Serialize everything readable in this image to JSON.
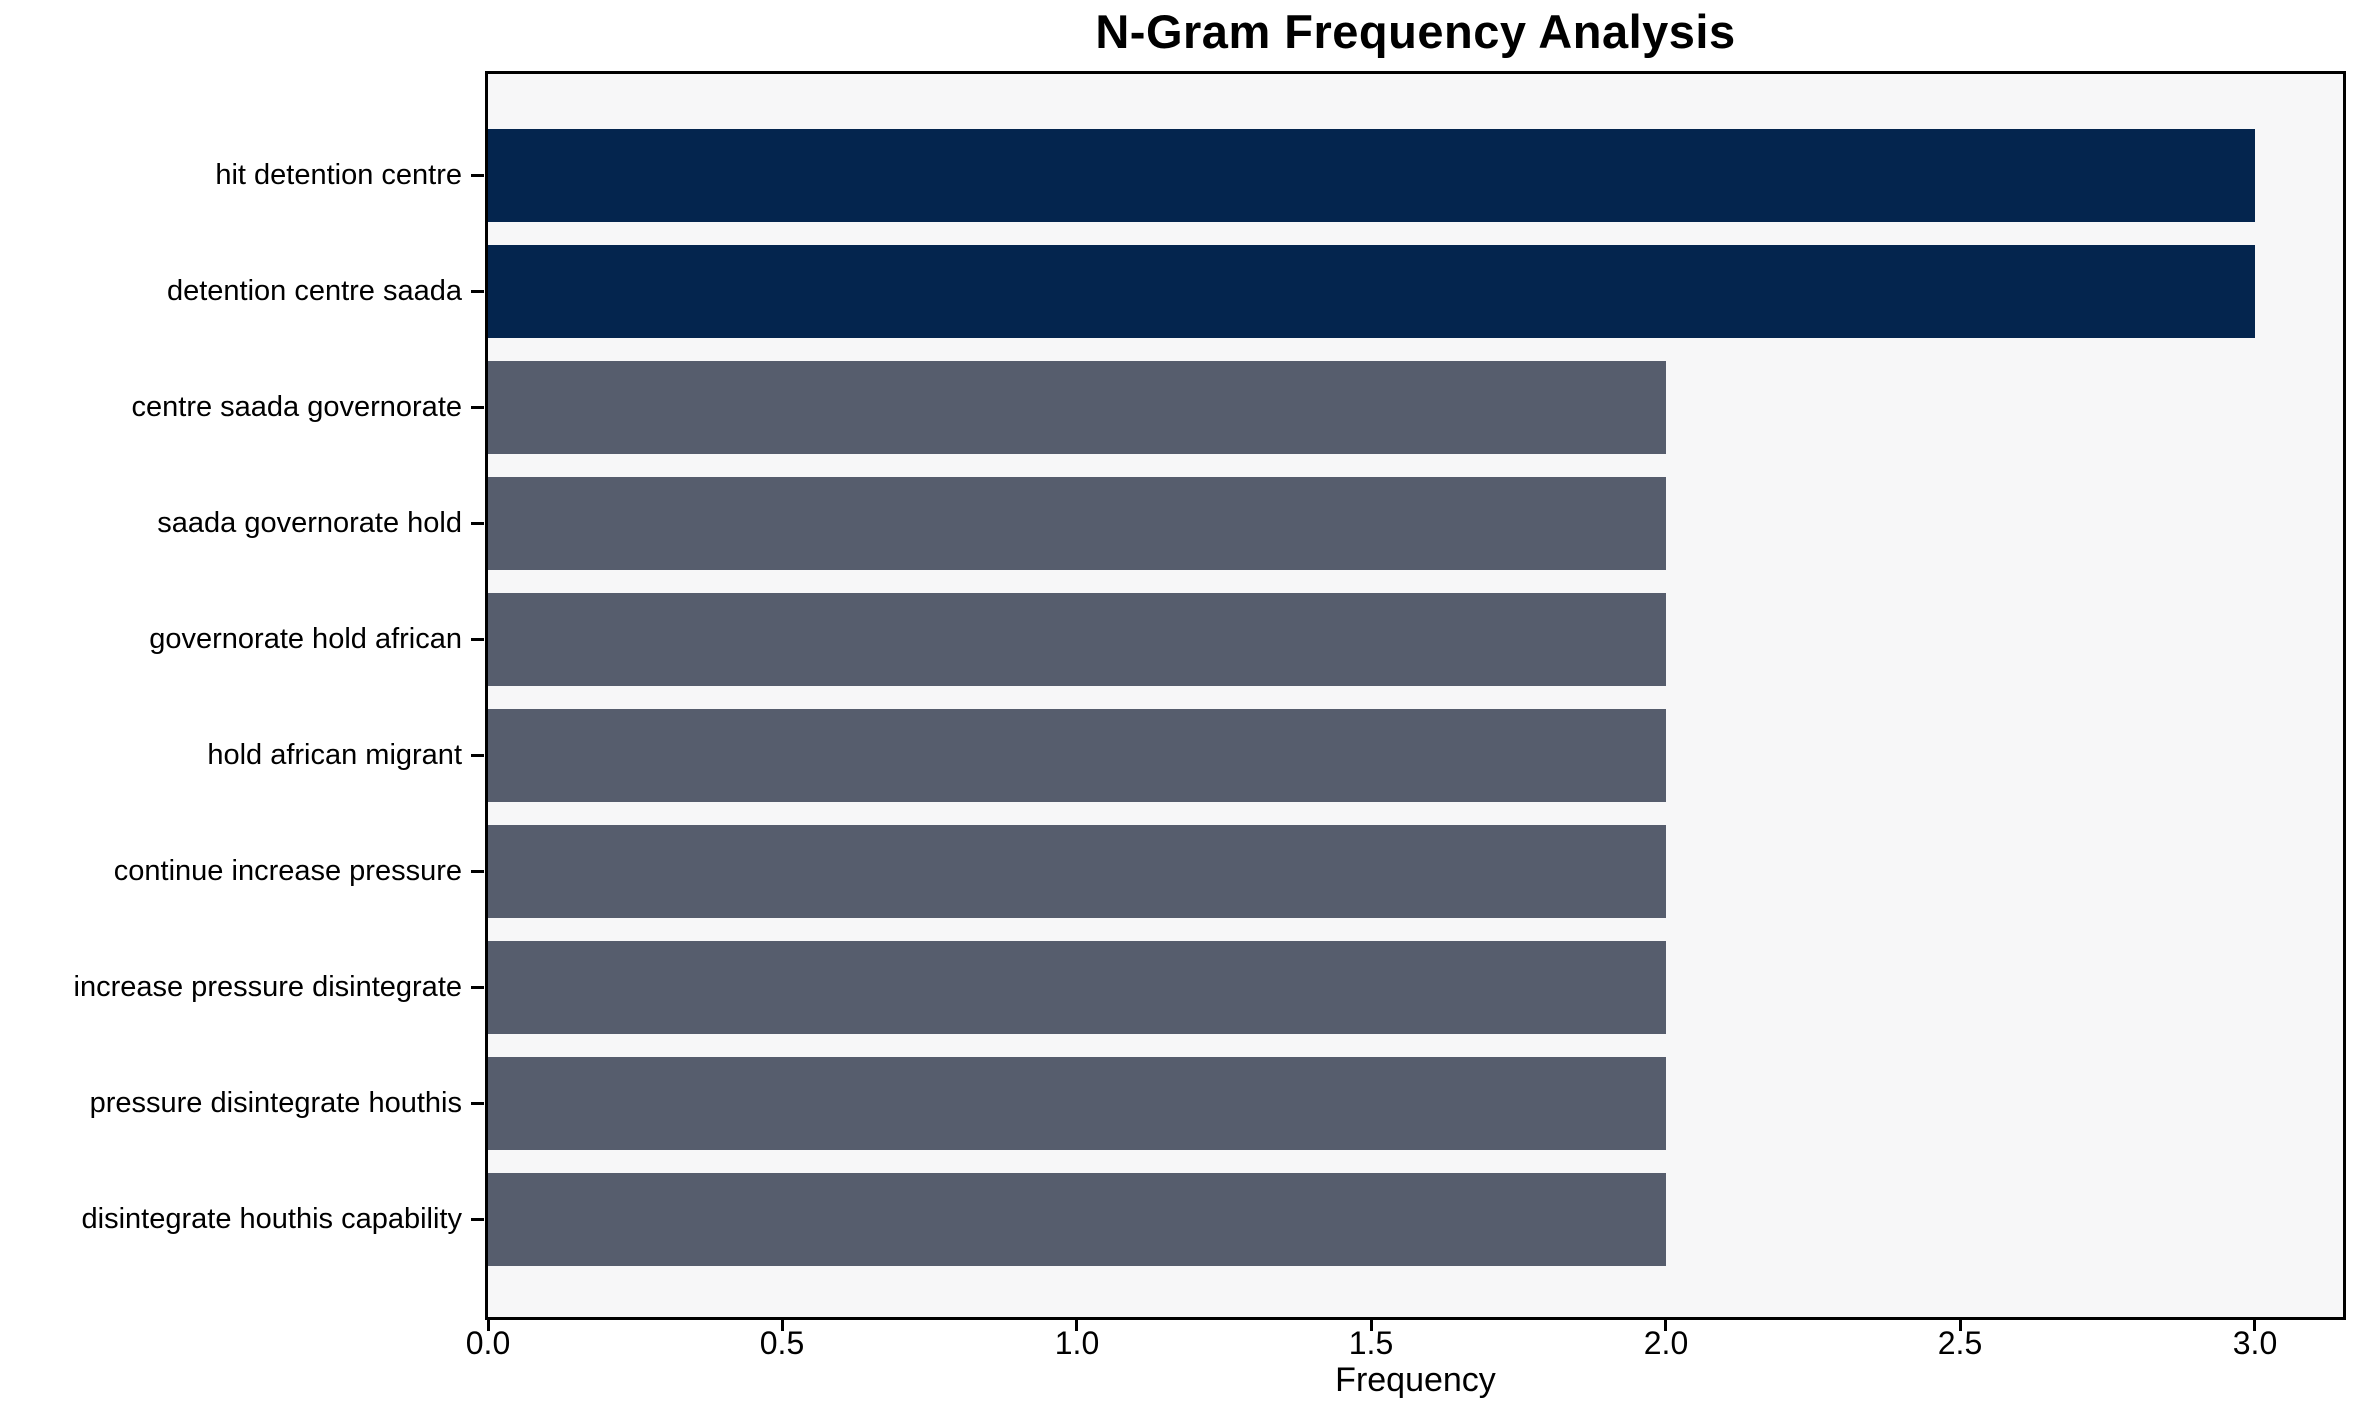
{
  "title": "N-Gram Frequency Analysis",
  "chart_data": {
    "type": "bar",
    "orientation": "horizontal",
    "title": "N-Gram Frequency Analysis",
    "xlabel": "Frequency",
    "ylabel": "",
    "categories": [
      "hit detention centre",
      "detention centre saada",
      "centre saada governorate",
      "saada governorate hold",
      "governorate hold african",
      "hold african migrant",
      "continue increase pressure",
      "increase pressure disintegrate",
      "pressure disintegrate houthis",
      "disintegrate houthis capability"
    ],
    "values": [
      3,
      3,
      2,
      2,
      2,
      2,
      2,
      2,
      2,
      2
    ],
    "bar_colors": [
      "#04254e",
      "#04254e",
      "#565d6d",
      "#565d6d",
      "#565d6d",
      "#565d6d",
      "#565d6d",
      "#565d6d",
      "#565d6d",
      "#565d6d"
    ],
    "xlim": [
      0,
      3.15
    ],
    "xticks": [
      0.0,
      0.5,
      1.0,
      1.5,
      2.0,
      2.5,
      3.0
    ],
    "xtick_labels": [
      "0.0",
      "0.5",
      "1.0",
      "1.5",
      "2.0",
      "2.5",
      "3.0"
    ],
    "grid": false,
    "legend": null,
    "colors": {
      "highlight_bar": "#04254e",
      "default_bar": "#565d6d",
      "plot_background": "#f7f7f8",
      "figure_background": "#ffffff",
      "spine": "#000000",
      "text": "#000000"
    }
  }
}
